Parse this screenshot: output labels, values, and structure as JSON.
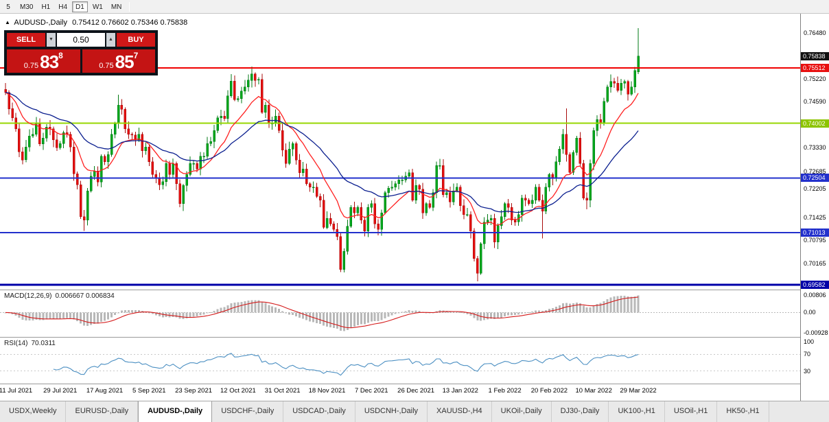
{
  "toolbar": {
    "timeframes": [
      "5",
      "M30",
      "H1",
      "H4",
      "D1",
      "W1",
      "MN"
    ],
    "active": "D1"
  },
  "chart_header": {
    "symbol_marker": "▲",
    "title": "AUDUSD-,Daily",
    "ohlc": "0.75412 0.76602 0.75346 0.75838"
  },
  "trade_panel": {
    "sell_label": "SELL",
    "buy_label": "BUY",
    "volume": "0.50",
    "vol_down_glyph": "▼",
    "vol_up_glyph": "▲",
    "bid": {
      "prefix": "0.75",
      "big": "83",
      "sup": "8"
    },
    "ask": {
      "prefix": "0.75",
      "big": "85",
      "sup": "7"
    }
  },
  "price_axis": {
    "ticks": [
      "0.76480",
      "0.75220",
      "0.74590",
      "0.73330",
      "0.72685",
      "0.72205",
      "0.71425",
      "0.70795",
      "0.70165"
    ],
    "boxes": [
      {
        "value": "0.75838",
        "bg": "#111111"
      },
      {
        "value": "0.75512",
        "bg": "#e81010"
      },
      {
        "value": "0.74002",
        "bg": "#8dc400"
      },
      {
        "value": "0.72504",
        "bg": "#2230cc"
      },
      {
        "value": "0.71013",
        "bg": "#2230cc"
      },
      {
        "value": "0.69582",
        "bg": "#0000a8"
      }
    ]
  },
  "chart_data": {
    "type": "candlestick",
    "title": "AUDUSD-,Daily",
    "current_bar": {
      "open": 0.75412,
      "high": 0.76602,
      "low": 0.75346,
      "close": 0.75838
    },
    "price_range": [
      0.6945,
      0.77
    ],
    "x_labels": [
      "11 Jul 2021",
      "29 Jul 2021",
      "17 Aug 2021",
      "5 Sep 2021",
      "23 Sep 2021",
      "12 Oct 2021",
      "31 Oct 2021",
      "18 Nov 2021",
      "7 Dec 2021",
      "26 Dec 2021",
      "13 Jan 2022",
      "1 Feb 2022",
      "20 Feb 2022",
      "10 Mar 2022",
      "29 Mar 2022"
    ],
    "closes": [
      0.7485,
      0.744,
      0.7415,
      0.7385,
      0.7322,
      0.73,
      0.7335,
      0.7365,
      0.737,
      0.7398,
      0.7344,
      0.736,
      0.739,
      0.7385,
      0.7355,
      0.7333,
      0.7345,
      0.7375,
      0.737,
      0.7335,
      0.7262,
      0.7232,
      0.7145,
      0.7135,
      0.7215,
      0.7255,
      0.727,
      0.724,
      0.731,
      0.7295,
      0.7315,
      0.737,
      0.74,
      0.745,
      0.7439,
      0.7385,
      0.737,
      0.7368,
      0.7355,
      0.737,
      0.7325,
      0.7335,
      0.7295,
      0.726,
      0.725,
      0.7232,
      0.724,
      0.729,
      0.726,
      0.729,
      0.7235,
      0.718,
      0.723,
      0.726,
      0.729,
      0.729,
      0.7275,
      0.731,
      0.731,
      0.7345,
      0.735,
      0.738,
      0.7415,
      0.742,
      0.7413,
      0.7475,
      0.7516,
      0.7465,
      0.7468,
      0.7488,
      0.75,
      0.7518,
      0.7535,
      0.7518,
      0.752,
      0.743,
      0.745,
      0.74,
      0.74,
      0.742,
      0.738,
      0.7327,
      0.729,
      0.733,
      0.7345,
      0.73,
      0.7265,
      0.7275,
      0.7235,
      0.7225,
      0.7225,
      0.72,
      0.719,
      0.7115,
      0.714,
      0.7125,
      0.711,
      0.709,
      0.7,
      0.705,
      0.7118,
      0.717,
      0.7155,
      0.717,
      0.7135,
      0.7105,
      0.717,
      0.718,
      0.7125,
      0.711,
      0.7155,
      0.721,
      0.7223,
      0.7225,
      0.7235,
      0.7245,
      0.7245,
      0.7255,
      0.7265,
      0.719,
      0.723,
      0.722,
      0.7155,
      0.718,
      0.717,
      0.721,
      0.7285,
      0.7285,
      0.7205,
      0.721,
      0.7185,
      0.7215,
      0.7225,
      0.7175,
      0.715,
      0.715,
      0.7105,
      0.703,
      0.699,
      0.707,
      0.713,
      0.7135,
      0.714,
      0.7075,
      0.712,
      0.7145,
      0.718,
      0.717,
      0.7135,
      0.713,
      0.715,
      0.7195,
      0.719,
      0.718,
      0.719,
      0.7225,
      0.719,
      0.716,
      0.7225,
      0.726,
      0.725,
      0.7295,
      0.733,
      0.737,
      0.7315,
      0.7266,
      0.732,
      0.736,
      0.729,
      0.7195,
      0.719,
      0.729,
      0.738,
      0.741,
      0.74,
      0.746,
      0.75,
      0.7515,
      0.751,
      0.749,
      0.751,
      0.7515,
      0.748,
      0.75,
      0.7545,
      0.75838
    ],
    "wick_overrides": {
      "5": {
        "l": 0.7288
      },
      "23": {
        "l": 0.7106
      },
      "33": {
        "h": 0.7478
      },
      "51": {
        "l": 0.717
      },
      "72": {
        "h": 0.7555
      },
      "98": {
        "l": 0.6993
      },
      "138": {
        "l": 0.6968
      },
      "157": {
        "l": 0.7085
      },
      "164": {
        "h": 0.7441
      },
      "170": {
        "l": 0.7165
      },
      "185": {
        "o": 0.75412,
        "h": 0.76602,
        "l": 0.75346
      }
    },
    "hlines": [
      {
        "price": 0.75512,
        "color": "#f00000",
        "width": 2
      },
      {
        "price": 0.74002,
        "color": "#97d700",
        "width": 2
      },
      {
        "price": 0.72504,
        "color": "#2230cc",
        "width": 2
      },
      {
        "price": 0.71013,
        "color": "#2230cc",
        "width": 2
      },
      {
        "price": 0.69582,
        "color": "#0000a8",
        "width": 3
      }
    ],
    "colors": {
      "up": "#00a71c",
      "up_border": "#007a14",
      "down": "#e30f0f",
      "down_border": "#a80b0b",
      "ma_fast": "#ff2020",
      "ma_slow": "#0b1f8f",
      "macd_hist": "#b8b8b8",
      "macd_signal": "#d41a1a",
      "rsi": "#4b8fc2"
    },
    "indicators": {
      "ma_fast_period": 13,
      "ma_slow_period": 34,
      "macd": {
        "label": "MACD(12,26,9)",
        "value_text": "0.006667 0.006834",
        "fast": 12,
        "slow": 26,
        "signal": 9,
        "range": [
          -0.0112,
          0.0102
        ],
        "axis_ticks": [
          "0.00806",
          "0.00",
          "-0.00928"
        ]
      },
      "rsi": {
        "label": "RSI(14)",
        "value_text": "70.0311",
        "period": 14,
        "range": [
          0,
          110
        ],
        "levels": [
          70,
          30
        ],
        "axis_ticks": [
          "100",
          "70",
          "30"
        ]
      }
    }
  },
  "tabs": {
    "items": [
      "USDX,Weekly",
      "EURUSD-,Daily",
      "AUDUSD-,Daily",
      "USDCHF-,Daily",
      "USDCAD-,Daily",
      "USDCNH-,Daily",
      "XAUUSD-,H4",
      "UKOil-,Daily",
      "DJ30-,Daily",
      "UK100-,H1",
      "USOil-,H1",
      "HK50-,H1"
    ],
    "active_index": 2
  }
}
